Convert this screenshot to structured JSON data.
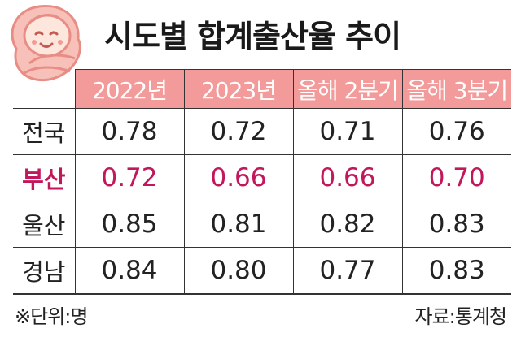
{
  "title": "시도별 합계출산율 추이",
  "illustration": "baby-icon",
  "chart_data": {
    "type": "table",
    "title": "시도별 합계출산율 추이",
    "columns": [
      "2022년",
      "2023년",
      "올해 2분기",
      "올해 3분기"
    ],
    "rows": [
      {
        "label": "전국",
        "values": [
          "0.78",
          "0.72",
          "0.71",
          "0.76"
        ],
        "highlight": false
      },
      {
        "label": "부산",
        "values": [
          "0.72",
          "0.66",
          "0.66",
          "0.70"
        ],
        "highlight": true
      },
      {
        "label": "울산",
        "values": [
          "0.85",
          "0.81",
          "0.82",
          "0.83"
        ],
        "highlight": false
      },
      {
        "label": "경남",
        "values": [
          "0.84",
          "0.80",
          "0.77",
          "0.83"
        ],
        "highlight": false
      }
    ],
    "highlight_color": "#c2185b",
    "header_color": "#f39a9a"
  },
  "footer": {
    "unit_note": "※단위:명",
    "source": "자료:통계청"
  }
}
